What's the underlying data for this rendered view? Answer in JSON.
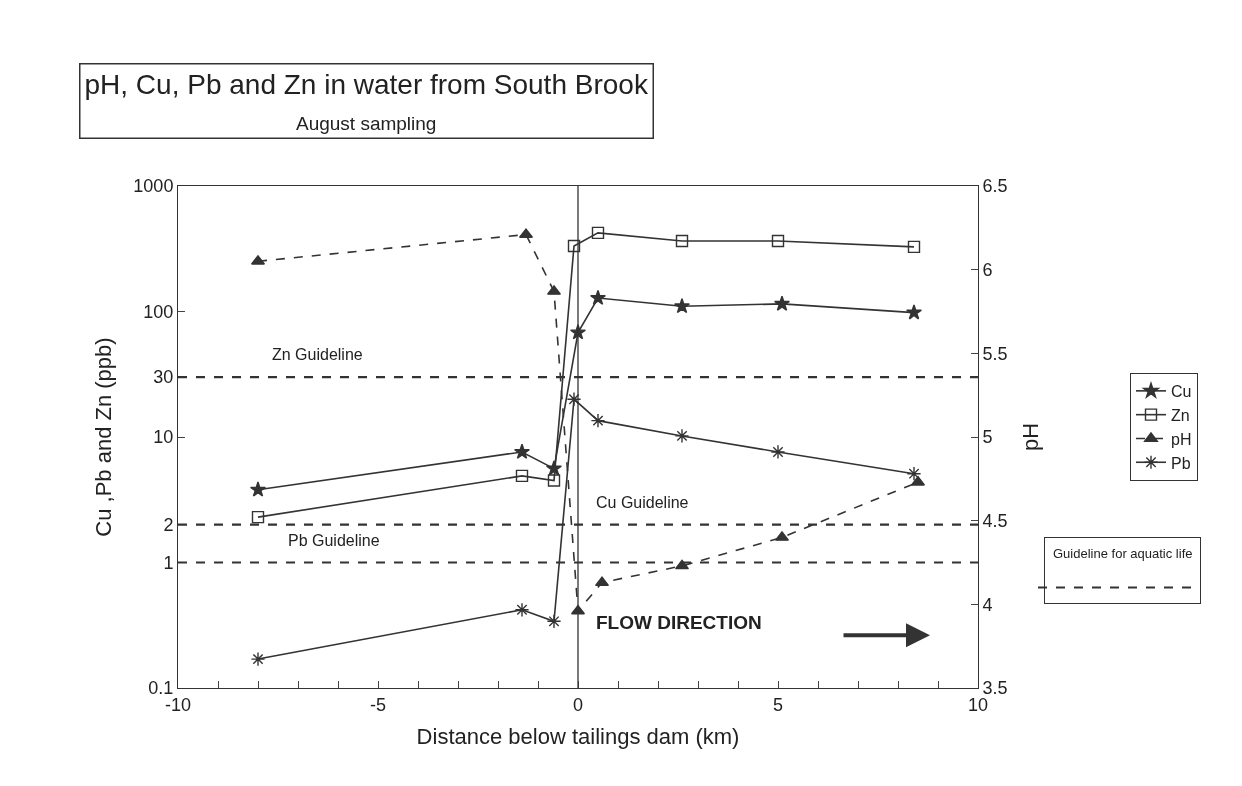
{
  "chart_data": {
    "type": "line",
    "title": "pH, Cu, Pb and Zn in water from South Brook",
    "subtitle": "August sampling",
    "xlabel": "Distance below tailings dam (km)",
    "ylabel": "Cu ,Pb and Zn (ppb)",
    "y2label": "pH",
    "log": "y",
    "legend": "right",
    "xlim": [
      -10,
      10
    ],
    "xticks": [
      -10,
      {
        "value": -9,
        "label": null
      },
      {
        "value": -8,
        "label": null
      },
      {
        "value": -7,
        "label": null
      },
      {
        "value": -6,
        "label": null
      },
      -5,
      {
        "value": -4,
        "label": null
      },
      {
        "value": -3,
        "label": null
      },
      {
        "value": -2,
        "label": null
      },
      {
        "value": -1,
        "label": null
      },
      0,
      {
        "value": 1,
        "label": null
      },
      {
        "value": 2,
        "label": null
      },
      {
        "value": 3,
        "label": null
      },
      {
        "value": 4,
        "label": null
      },
      5,
      {
        "value": 6,
        "label": null
      },
      {
        "value": 7,
        "label": null
      },
      {
        "value": 8,
        "label": null
      },
      {
        "value": 9,
        "label": null
      },
      10
    ],
    "ylim": [
      0.1,
      1000
    ],
    "yticks": [
      0.1,
      1,
      2,
      10,
      30,
      100,
      1000
    ],
    "y2lim": [
      3.5,
      6.5
    ],
    "y2ticks": [
      3.5,
      4,
      4.5,
      5,
      5.5,
      6,
      6.5
    ],
    "series": [
      {
        "name": "Cu",
        "color": "#333333",
        "marker": "star",
        "line_style": "solid",
        "x": [
          -8.0,
          -1.4,
          -0.6,
          0.0,
          0.5,
          2.6,
          5.1,
          8.4
        ],
        "values": [
          3.8,
          7.6,
          5.6,
          68,
          128,
          110,
          115,
          98
        ]
      },
      {
        "name": "Zn",
        "color": "#333333",
        "marker": "square",
        "line_style": "solid",
        "x": [
          -8.0,
          -1.4,
          -0.6,
          -0.1,
          0.5,
          2.6,
          5.0,
          8.4
        ],
        "values": [
          2.3,
          4.9,
          4.5,
          333,
          423,
          365,
          365,
          327
        ]
      },
      {
        "name": "pH",
        "color": "#333333",
        "marker": "triangle",
        "line_style": "dashed",
        "axis": "y2",
        "x": [
          -8.0,
          -1.3,
          -0.6,
          0.0,
          0.6,
          2.6,
          5.1,
          8.5
        ],
        "values": [
          6.05,
          6.21,
          5.87,
          3.96,
          4.13,
          4.23,
          4.4,
          4.73
        ]
      },
      {
        "name": "Pb",
        "color": "#333333",
        "marker": "cross",
        "line_style": "solid",
        "x": [
          -8.0,
          -1.4,
          -0.6,
          -0.1,
          0.5,
          2.6,
          5.0,
          8.4
        ],
        "values": [
          0.17,
          0.42,
          0.34,
          20,
          13.5,
          10.2,
          7.6,
          5.1
        ]
      }
    ],
    "ref_lines": [
      {
        "axis": "y",
        "value": 30,
        "label": "Zn Guideline",
        "line_style": "dashed",
        "color": "#333333"
      },
      {
        "axis": "y",
        "value": 2,
        "label": "Cu Guideline",
        "line_style": "dashed",
        "color": "#333333"
      },
      {
        "axis": "y",
        "value": 1,
        "label": "Pb Guideline",
        "line_style": "dashed",
        "color": "#333333"
      },
      {
        "axis": "x",
        "value": 0,
        "line_style": "solid",
        "color": "#333333"
      }
    ],
    "annotations": [
      "FLOW DIRECTION",
      "Guideline for aquatic life"
    ]
  }
}
